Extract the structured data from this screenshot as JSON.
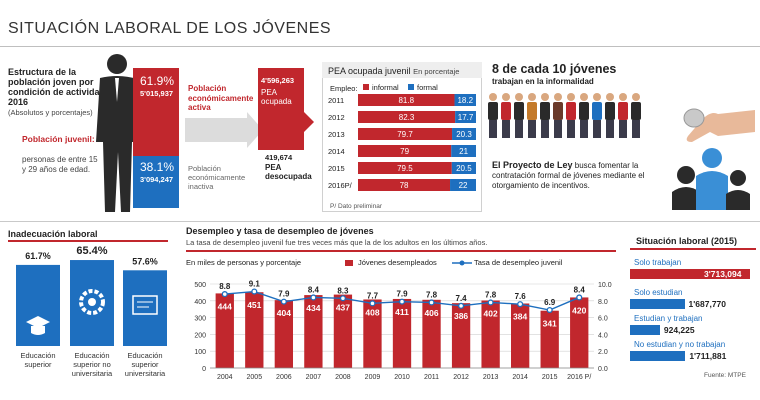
{
  "title": "SITUACIÓN LABORAL DE LOS JÓVENES",
  "colors": {
    "red": "#c1272d",
    "blue": "#1e6fbf",
    "grey_arrow": "#dcdcdc",
    "silhouette": "#2a2a2a"
  },
  "estructura": {
    "heading": "Estructura de la población joven por condición de actividad, 2016",
    "subheading": "(Absolutos y porcentajes)",
    "pob_label": "Población juvenil:",
    "pob_desc": "personas de entre 15 y 29 años de edad.",
    "active_pct": "61.9%",
    "active_num": "5'015,937",
    "inactive_pct": "38.1%",
    "inactive_num": "3'094,247",
    "active_label": "Población económicamente activa",
    "inactive_label": "Población económicamente inactiva",
    "pea_ocupada_num": "4'596,263",
    "pea_ocupada_label": "PEA ocupada",
    "pea_desocupada_num": "419,674",
    "pea_desocupada_label": "PEA desocupada"
  },
  "chart_data": [
    {
      "type": "bar",
      "title": "PEA ocupada juvenil",
      "subtitle": "En porcentaje",
      "categories": [
        "2011",
        "2012",
        "2013",
        "2014",
        "2015",
        "2016P/"
      ],
      "series": [
        {
          "name": "informal",
          "values": [
            81.8,
            82.3,
            79.7,
            79,
            79.5,
            78
          ]
        },
        {
          "name": "formal",
          "values": [
            18.2,
            17.7,
            20.3,
            21,
            20.5,
            22
          ]
        }
      ],
      "value_labels": {
        "informal": [
          "81.8",
          "82.3",
          "79.7",
          "79",
          "79.5",
          "78"
        ],
        "formal": [
          "18.2",
          "17.7",
          "20.3",
          "21",
          "20.5",
          "22"
        ]
      },
      "axis_label": "Empleo:",
      "note": "P/ Dato preliminar"
    },
    {
      "type": "bar",
      "title": "Inadecuación laboral",
      "categories": [
        "Educación superior",
        "Educación superior no universitaria",
        "Educación superior universitaria"
      ],
      "values": [
        61.7,
        65.4,
        57.6
      ],
      "value_labels": [
        "61.7%",
        "65.4%",
        "57.6%"
      ]
    },
    {
      "type": "bar",
      "title": "Desempleo y tasa de desempleo de jóvenes",
      "subtitle": "La tasa de desempleo juvenil fue tres veces más que la de los adultos en los últimos años.",
      "units_label": "En miles de personas y porcentaje",
      "categories": [
        "2004",
        "2005",
        "2006",
        "2007",
        "2008",
        "2009",
        "2010",
        "2011",
        "2012",
        "2013",
        "2014",
        "2015",
        "2016 P/"
      ],
      "series": [
        {
          "name": "Jóvenes desempleados",
          "type": "bar",
          "values": [
            444,
            451,
            404,
            434,
            437,
            408,
            411,
            406,
            386,
            402,
            384,
            341,
            420
          ]
        },
        {
          "name": "Tasa de desempleo juvenil",
          "type": "line",
          "values": [
            8.8,
            9.1,
            7.9,
            8.4,
            8.3,
            7.7,
            7.9,
            7.8,
            7.4,
            7.8,
            7.6,
            6.9,
            8.4
          ]
        }
      ],
      "y_left": {
        "ticks": [
          "0",
          "100",
          "200",
          "300",
          "400",
          "500"
        ],
        "range": [
          0,
          500
        ]
      },
      "y_right": {
        "ticks": [
          "0.0",
          "2.0",
          "4.0",
          "6.0",
          "8.0",
          "10.0"
        ],
        "range": [
          0,
          10
        ]
      },
      "grid": true
    },
    {
      "type": "bar",
      "title": "Situación laboral (2015)",
      "categories": [
        "Solo trabajan",
        "Solo estudian",
        "Estudian y trabajan",
        "No estudian y no trabajan"
      ],
      "values": [
        3713094,
        1687770,
        924225,
        1711881
      ],
      "value_labels": [
        "3'713,094",
        "1'687,770",
        "924,225",
        "1'711,881"
      ],
      "source": "Fuente: MTPE"
    }
  ],
  "informal_headline": {
    "big": "8 de cada 10 jóvenes",
    "sub": "trabajan en la informalidad"
  },
  "proyecto": {
    "bold": "El Proyecto de Ley",
    "text": " busca fomentar la contratación formal de jóvenes mediante el otorgamiento de incentivos."
  }
}
